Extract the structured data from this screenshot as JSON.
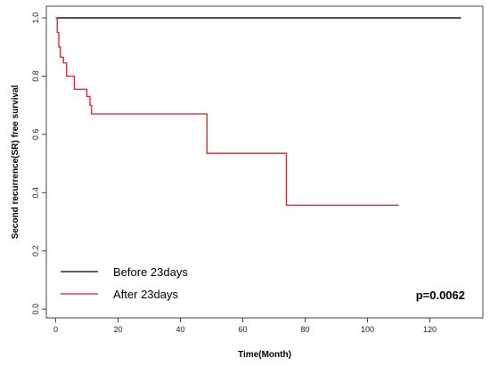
{
  "chart_data": {
    "type": "line",
    "step": true,
    "xlabel": "Time(Month)",
    "ylabel": "Second recurrence(SR) free survival",
    "xlim": [
      -3,
      137
    ],
    "ylim": [
      -0.03,
      1.04
    ],
    "xticks": [
      0,
      20,
      40,
      60,
      80,
      100,
      120
    ],
    "yticks": [
      0.0,
      0.2,
      0.4,
      0.6,
      0.8,
      1.0
    ],
    "ytick_labels": [
      "0.0",
      "0.2",
      "0.4",
      "0.6",
      "0.8",
      "1.0"
    ],
    "grid": false,
    "legend_position": "bottom-left",
    "annotation": "p=0.0062",
    "series": [
      {
        "name": "Before 23days",
        "color": "#000000",
        "x": [
          0,
          130
        ],
        "y": [
          1.0,
          1.0
        ]
      },
      {
        "name": "After 23days",
        "color": "#e8191d",
        "x": [
          0,
          0.5,
          1.0,
          1.5,
          2.5,
          3.5,
          6.0,
          10.0,
          11.0,
          11.5,
          48.5,
          74.0,
          110.0
        ],
        "y": [
          1.0,
          0.95,
          0.9,
          0.865,
          0.845,
          0.8,
          0.755,
          0.73,
          0.7,
          0.67,
          0.535,
          0.357,
          0.357
        ]
      }
    ]
  }
}
